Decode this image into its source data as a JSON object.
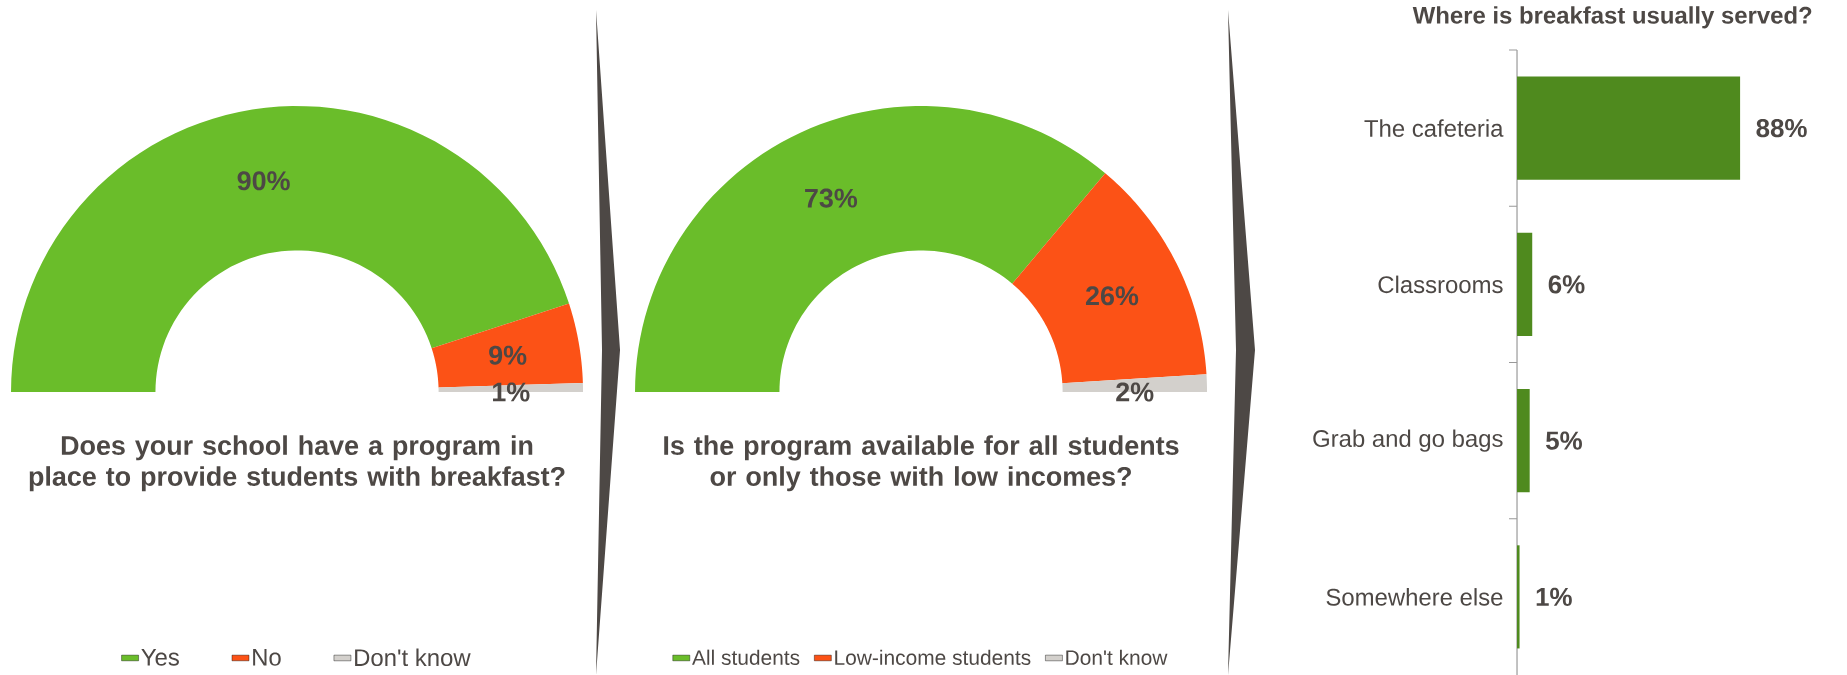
{
  "chart_data": [
    {
      "type": "donut",
      "title": "Does your school have a program in place to provide students with breakfast?",
      "categories": [
        "Yes",
        "No",
        "Don't know"
      ],
      "values": [
        90,
        9,
        1
      ],
      "colors": [
        "#6abd2a",
        "#fc5216",
        "#d3d0cc"
      ],
      "value_labels": [
        "90%",
        "9%",
        "1%"
      ],
      "legend": "bottom"
    },
    {
      "type": "donut",
      "title": "Is the program available for all students or only those with low incomes?",
      "categories": [
        "All students",
        "Low-income students",
        "Don't know"
      ],
      "values": [
        73,
        26,
        2
      ],
      "colors": [
        "#6abd2a",
        "#fc5216",
        "#d3d0cc"
      ],
      "value_labels": [
        "73%",
        "26%",
        "2%"
      ],
      "legend": "bottom"
    },
    {
      "type": "bar",
      "orientation": "horizontal",
      "title": "Where is breakfast usually served?",
      "categories": [
        "The cafeteria",
        "Classrooms",
        "Grab and go bags",
        "Somewhere else"
      ],
      "values": [
        88,
        6,
        5,
        1
      ],
      "color": "#4f8a1e",
      "value_labels": [
        "88%",
        "6%",
        "5%",
        "1%"
      ]
    }
  ]
}
